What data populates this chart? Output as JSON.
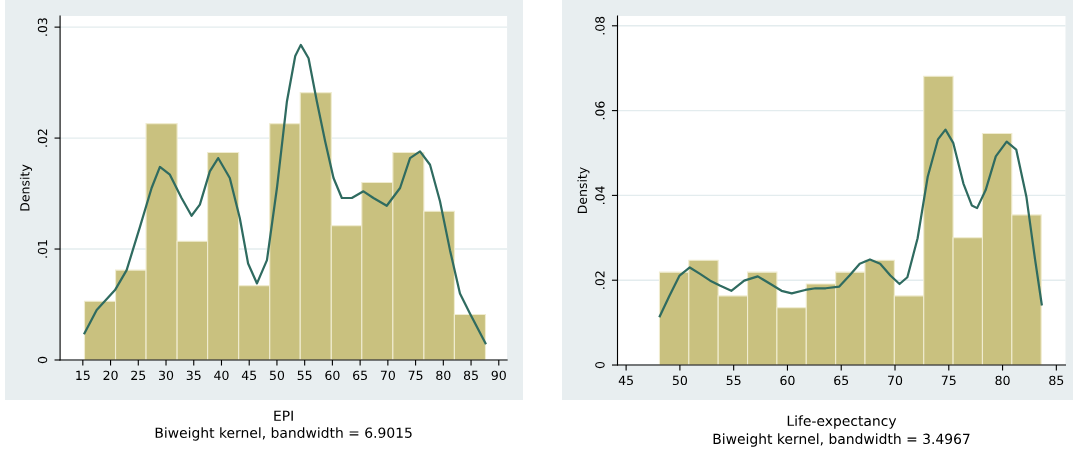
{
  "chart_data": [
    {
      "type": "histogram",
      "xlabel": "EPI",
      "ylabel": "Density",
      "color": "#c9c17f",
      "grid": "y",
      "bins": [
        15.3,
        20.9,
        26.4,
        32.0,
        37.5,
        43.1,
        48.7,
        54.2,
        59.8,
        65.3,
        70.9,
        76.5,
        82.0,
        87.6
      ],
      "values": [
        0.0053,
        0.0081,
        0.0213,
        0.0107,
        0.0187,
        0.0067,
        0.0213,
        0.0241,
        0.0121,
        0.016,
        0.0187,
        0.0134,
        0.0041
      ],
      "series": [
        {
          "type": "line",
          "color": "#2f6b60",
          "x": [
            15.3,
            17.5,
            20.8,
            22.9,
            25.3,
            27.4,
            28.9,
            30.7,
            32.8,
            34.6,
            36.1,
            37.9,
            39.4,
            41.5,
            43.3,
            44.8,
            46.4,
            48.2,
            50.0,
            51.8,
            53.3,
            54.3,
            55.7,
            57.2,
            58.7,
            60.2,
            61.7,
            63.5,
            65.6,
            67.4,
            69.8,
            72.2,
            74.0,
            75.8,
            77.6,
            79.4,
            81.2,
            83.0,
            84.8,
            87.6
          ],
          "values": [
            0.0024,
            0.0045,
            0.0063,
            0.0081,
            0.012,
            0.0155,
            0.0174,
            0.0167,
            0.0146,
            0.013,
            0.014,
            0.017,
            0.0182,
            0.0164,
            0.0128,
            0.0087,
            0.0069,
            0.009,
            0.0155,
            0.0233,
            0.0274,
            0.0284,
            0.0272,
            0.0233,
            0.0197,
            0.0164,
            0.0146,
            0.0146,
            0.0152,
            0.0146,
            0.0139,
            0.0155,
            0.0182,
            0.0188,
            0.0176,
            0.0143,
            0.0099,
            0.006,
            0.0042,
            0.0015
          ]
        }
      ],
      "xlim": [
        10.9,
        91.5
      ],
      "xticks": [
        15,
        20,
        25,
        30,
        35,
        40,
        45,
        50,
        55,
        60,
        65,
        70,
        75,
        80,
        85,
        90
      ],
      "ylim": [
        0,
        0.031
      ],
      "yticks": [
        0,
        {
          "value": 0.01,
          "label": ".01"
        },
        {
          "value": 0.02,
          "label": ".02"
        },
        {
          "value": 0.03,
          "label": ".03"
        }
      ],
      "annotations": [
        "Biweight kernel, bandwidth = 6.9015"
      ]
    },
    {
      "type": "histogram",
      "xlabel": "Life-expectancy",
      "ylabel": "Density",
      "color": "#c9c17f",
      "grid": "y",
      "bins": [
        48.1,
        50.83,
        53.56,
        56.29,
        59.02,
        61.75,
        64.48,
        67.21,
        69.94,
        72.67,
        75.4,
        78.13,
        80.86,
        83.59
      ],
      "values": [
        0.0219,
        0.0247,
        0.0163,
        0.0219,
        0.0135,
        0.0191,
        0.0219,
        0.0247,
        0.0163,
        0.0681,
        0.03,
        0.0546,
        0.0354
      ],
      "series": [
        {
          "type": "line",
          "color": "#2f6b60",
          "x": [
            48.13,
            49.02,
            49.97,
            50.92,
            51.87,
            52.82,
            53.76,
            54.78,
            55.98,
            57.24,
            58.5,
            59.45,
            60.4,
            61.66,
            62.61,
            63.56,
            64.82,
            65.77,
            66.72,
            67.67,
            68.62,
            69.57,
            70.42,
            71.15,
            72.1,
            73.04,
            73.99,
            74.69,
            75.41,
            76.36,
            77.15,
            77.63,
            78.42,
            79.37,
            80.38,
            81.27,
            82.22,
            83.01,
            83.64
          ],
          "values": [
            0.0115,
            0.0163,
            0.0211,
            0.023,
            0.0215,
            0.0199,
            0.0187,
            0.0175,
            0.0199,
            0.0209,
            0.019,
            0.0175,
            0.0169,
            0.0177,
            0.0181,
            0.0181,
            0.0185,
            0.0211,
            0.0239,
            0.0249,
            0.0239,
            0.0211,
            0.0191,
            0.0207,
            0.0299,
            0.0444,
            0.0532,
            0.0555,
            0.0524,
            0.0428,
            0.0376,
            0.037,
            0.0412,
            0.0492,
            0.0527,
            0.0508,
            0.0396,
            0.0251,
            0.0143
          ]
        }
      ],
      "xlim": [
        44.2,
        85.85
      ],
      "xticks": [
        45,
        50,
        55,
        60,
        65,
        70,
        75,
        80,
        85
      ],
      "ylim": [
        0,
        0.0823
      ],
      "yticks": [
        0,
        {
          "value": 0.02,
          "label": ".02"
        },
        {
          "value": 0.04,
          "label": ".04"
        },
        {
          "value": 0.06,
          "label": ".06"
        },
        {
          "value": 0.08,
          "label": ".08"
        }
      ],
      "annotations": [
        "Biweight kernel, bandwidth = 3.4967"
      ]
    }
  ]
}
